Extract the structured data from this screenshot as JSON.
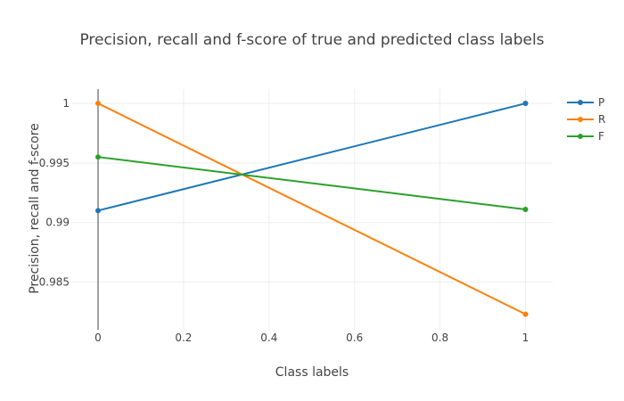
{
  "chart_data": {
    "type": "line",
    "title": "Precision, recall and f-score of true and predicted class labels",
    "xlabel": "Class labels",
    "ylabel": "Precision, recall and f-score",
    "xlim": [
      0,
      1
    ],
    "ylim": [
      0.981,
      1.0012
    ],
    "x_ticks": [
      0,
      0.2,
      0.4,
      0.6,
      0.8,
      1
    ],
    "x_tick_labels": [
      "0",
      "0.2",
      "0.4",
      "0.6",
      "0.8",
      "1"
    ],
    "y_ticks": [
      0.985,
      0.99,
      0.995,
      1
    ],
    "y_tick_labels": [
      "0.985",
      "0.99",
      "0.995",
      "1"
    ],
    "grid": true,
    "legend_position": "top-right",
    "x": [
      0,
      1
    ],
    "series": [
      {
        "name": "P",
        "color": "#1f77b4",
        "values": [
          0.991,
          1.0
        ]
      },
      {
        "name": "R",
        "color": "#ff7f0e",
        "values": [
          1.0,
          0.9823
        ]
      },
      {
        "name": "F",
        "color": "#2ca02c",
        "values": [
          0.9955,
          0.9911
        ]
      }
    ]
  }
}
